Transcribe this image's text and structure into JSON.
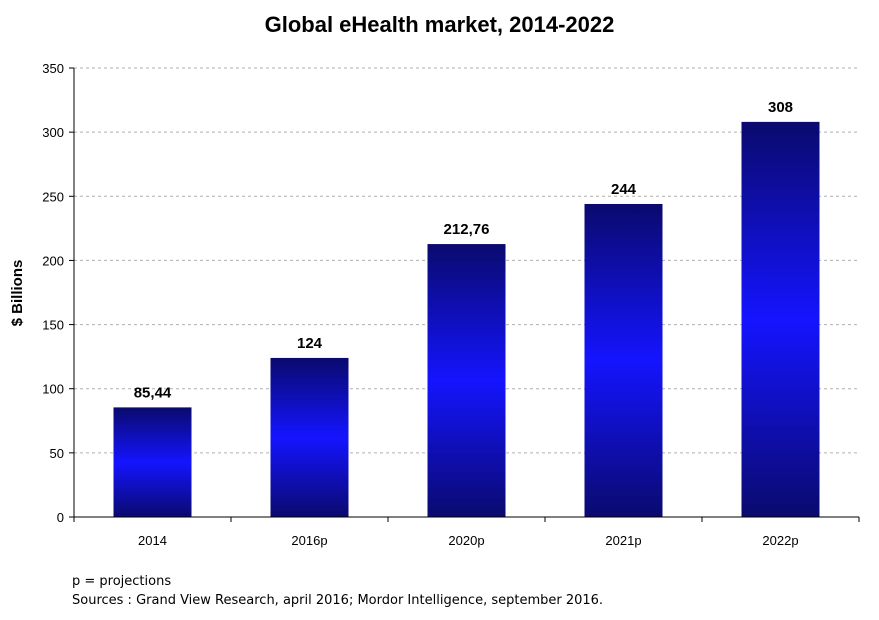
{
  "chart_data": {
    "type": "bar",
    "title": "Global eHealth market, 2014-2022",
    "xlabel": "",
    "ylabel": "$ Billions",
    "categories": [
      "2014",
      "2016p",
      "2020p",
      "2021p",
      "2022p"
    ],
    "values": [
      85.44,
      124,
      212.76,
      244,
      308
    ],
    "value_labels": [
      "85,44",
      "124",
      "212,76",
      "244",
      "308"
    ],
    "ylim": [
      0,
      350
    ],
    "yticks": [
      0,
      50,
      100,
      150,
      200,
      250,
      300,
      350
    ],
    "grid": true,
    "bar_colors": {
      "edge": "#0a0a6e",
      "center": "#1414ff"
    }
  },
  "notes": {
    "projection_note": "p = projections",
    "sources": "Sources : Grand View Research, april 2016; Mordor Intelligence, september 2016."
  }
}
